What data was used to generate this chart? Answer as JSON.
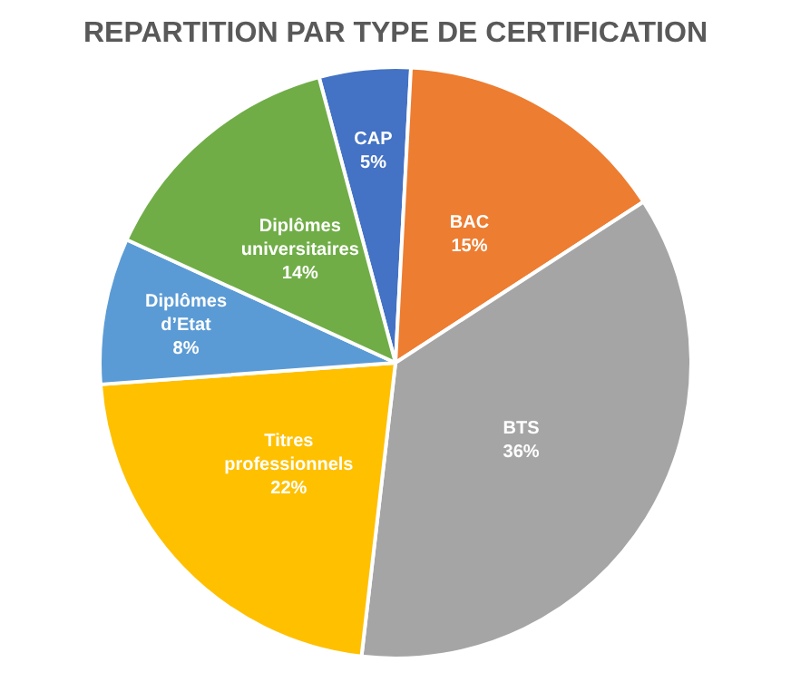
{
  "chart_data": {
    "type": "pie",
    "title": "REPARTITION PAR TYPE DE CERTIFICATION",
    "categories": [
      "CAP",
      "BAC",
      "BTS",
      "Titres professionnels",
      "Diplômes d’Etat",
      "Diplômes universitaires"
    ],
    "values": [
      5,
      15,
      36,
      22,
      8,
      14
    ],
    "value_labels": [
      "5%",
      "15%",
      "36%",
      "22%",
      "8%",
      "14%"
    ],
    "colors": [
      "#4472c4",
      "#ed7d31",
      "#a5a5a5",
      "#ffc000",
      "#5b9bd5",
      "#70ad47"
    ],
    "legend": false
  }
}
